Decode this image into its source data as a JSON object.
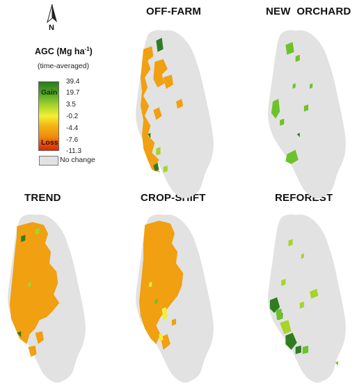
{
  "panels": [
    {
      "id": "off-farm",
      "title": "OFF-FARM"
    },
    {
      "id": "new-orchard",
      "title": "NEW  ORCHARD"
    },
    {
      "id": "trend",
      "title": "TREND"
    },
    {
      "id": "crop-shift",
      "title": "CROP-SHIFT"
    },
    {
      "id": "reforest",
      "title": "REFOREST"
    }
  ],
  "legend": {
    "title": "AGC (Mg ha",
    "title_sup": "-1",
    "title_close": ")",
    "subtitle": "(time-averaged)",
    "gain_label": "Gain",
    "loss_label": "Loss",
    "ticks": [
      "39.4",
      "19.7",
      "3.5",
      "-0.2",
      "-4.4",
      "-7.6",
      "-11.3"
    ],
    "no_change_label": "No change"
  },
  "north_arrow": {
    "label": "N"
  },
  "colors": {
    "no_change": "#e2e2e2",
    "loss_orange": "#f0a010",
    "gain_green": "#6cc22b",
    "dark_green": "#2f7d1f",
    "yellow": "#f2ee3a"
  }
}
